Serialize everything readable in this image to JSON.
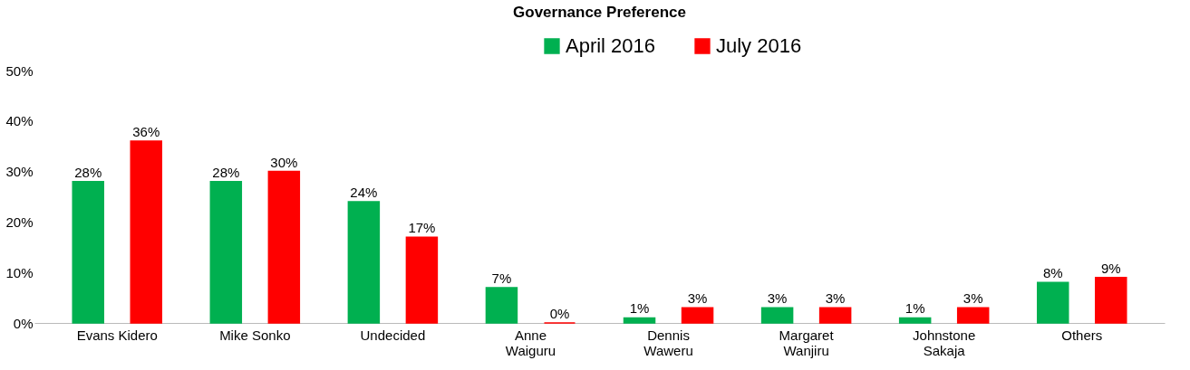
{
  "chart_data": {
    "type": "bar",
    "title": "Governance  Preference",
    "categories": [
      "Evans Kidero",
      "Mike Sonko",
      "Undecided",
      "Anne\nWaiguru",
      "Dennis\nWaweru",
      "Margaret\nWanjiru",
      "Johnstone\nSakaja",
      "Others"
    ],
    "series": [
      {
        "name": "April 2016",
        "color": "#00b050",
        "values": [
          28,
          28,
          24,
          7,
          1,
          3,
          1,
          8
        ],
        "value_labels": [
          "28%",
          "28%",
          "24%",
          "7%",
          "1%",
          "3%",
          "1%",
          "8%"
        ]
      },
      {
        "name": "July 2016",
        "color": "#ff0000",
        "values": [
          36,
          30,
          17,
          0,
          3,
          3,
          3,
          9
        ],
        "value_labels": [
          "36%",
          "30%",
          "17%",
          "0%",
          "3%",
          "3%",
          "3%",
          "9%"
        ]
      }
    ],
    "ylim": [
      0,
      50
    ],
    "yticks": [
      {
        "value": 0,
        "label": "0%"
      },
      {
        "value": 10,
        "label": "10%"
      },
      {
        "value": 20,
        "label": "20%"
      },
      {
        "value": 30,
        "label": "30%"
      },
      {
        "value": 40,
        "label": "40%"
      },
      {
        "value": 50,
        "label": "50%"
      }
    ],
    "grid": false,
    "legend": "top"
  }
}
